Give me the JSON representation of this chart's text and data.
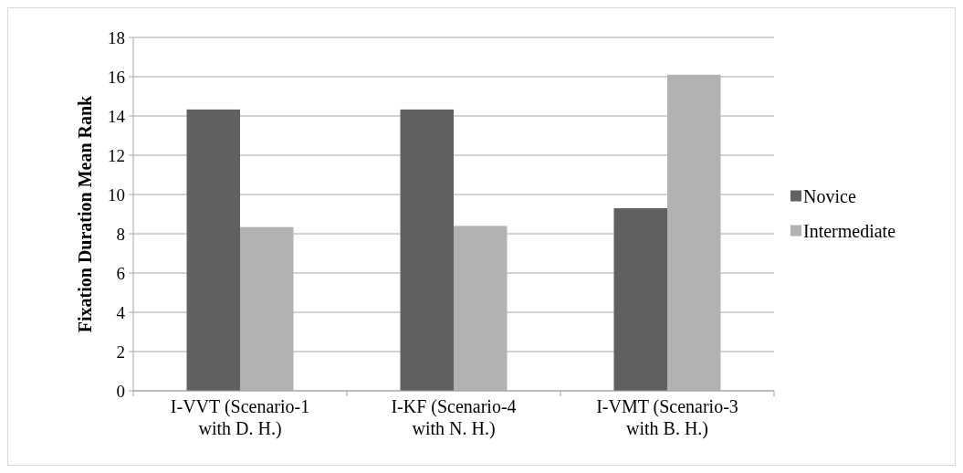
{
  "chart_data": {
    "type": "bar",
    "ylabel": "Fixation Duration Mean Rank",
    "categories": [
      "I-VVT (Scenario-1 with D. H.)",
      "I-KF (Scenario-4 with N. H.)",
      "I-VMT (Scenario-3 with B. H.)"
    ],
    "series": [
      {
        "name": "Novice",
        "color": "#606060",
        "values": [
          14.33,
          14.33,
          9.3
        ]
      },
      {
        "name": "Intermediate",
        "color": "#b2b2b2",
        "values": [
          8.34,
          8.4,
          16.1
        ]
      }
    ],
    "ylim": [
      0,
      18
    ],
    "yticks": [
      0,
      2,
      4,
      6,
      8,
      10,
      12,
      14,
      16,
      18
    ],
    "grid": "y",
    "legend": "right"
  }
}
